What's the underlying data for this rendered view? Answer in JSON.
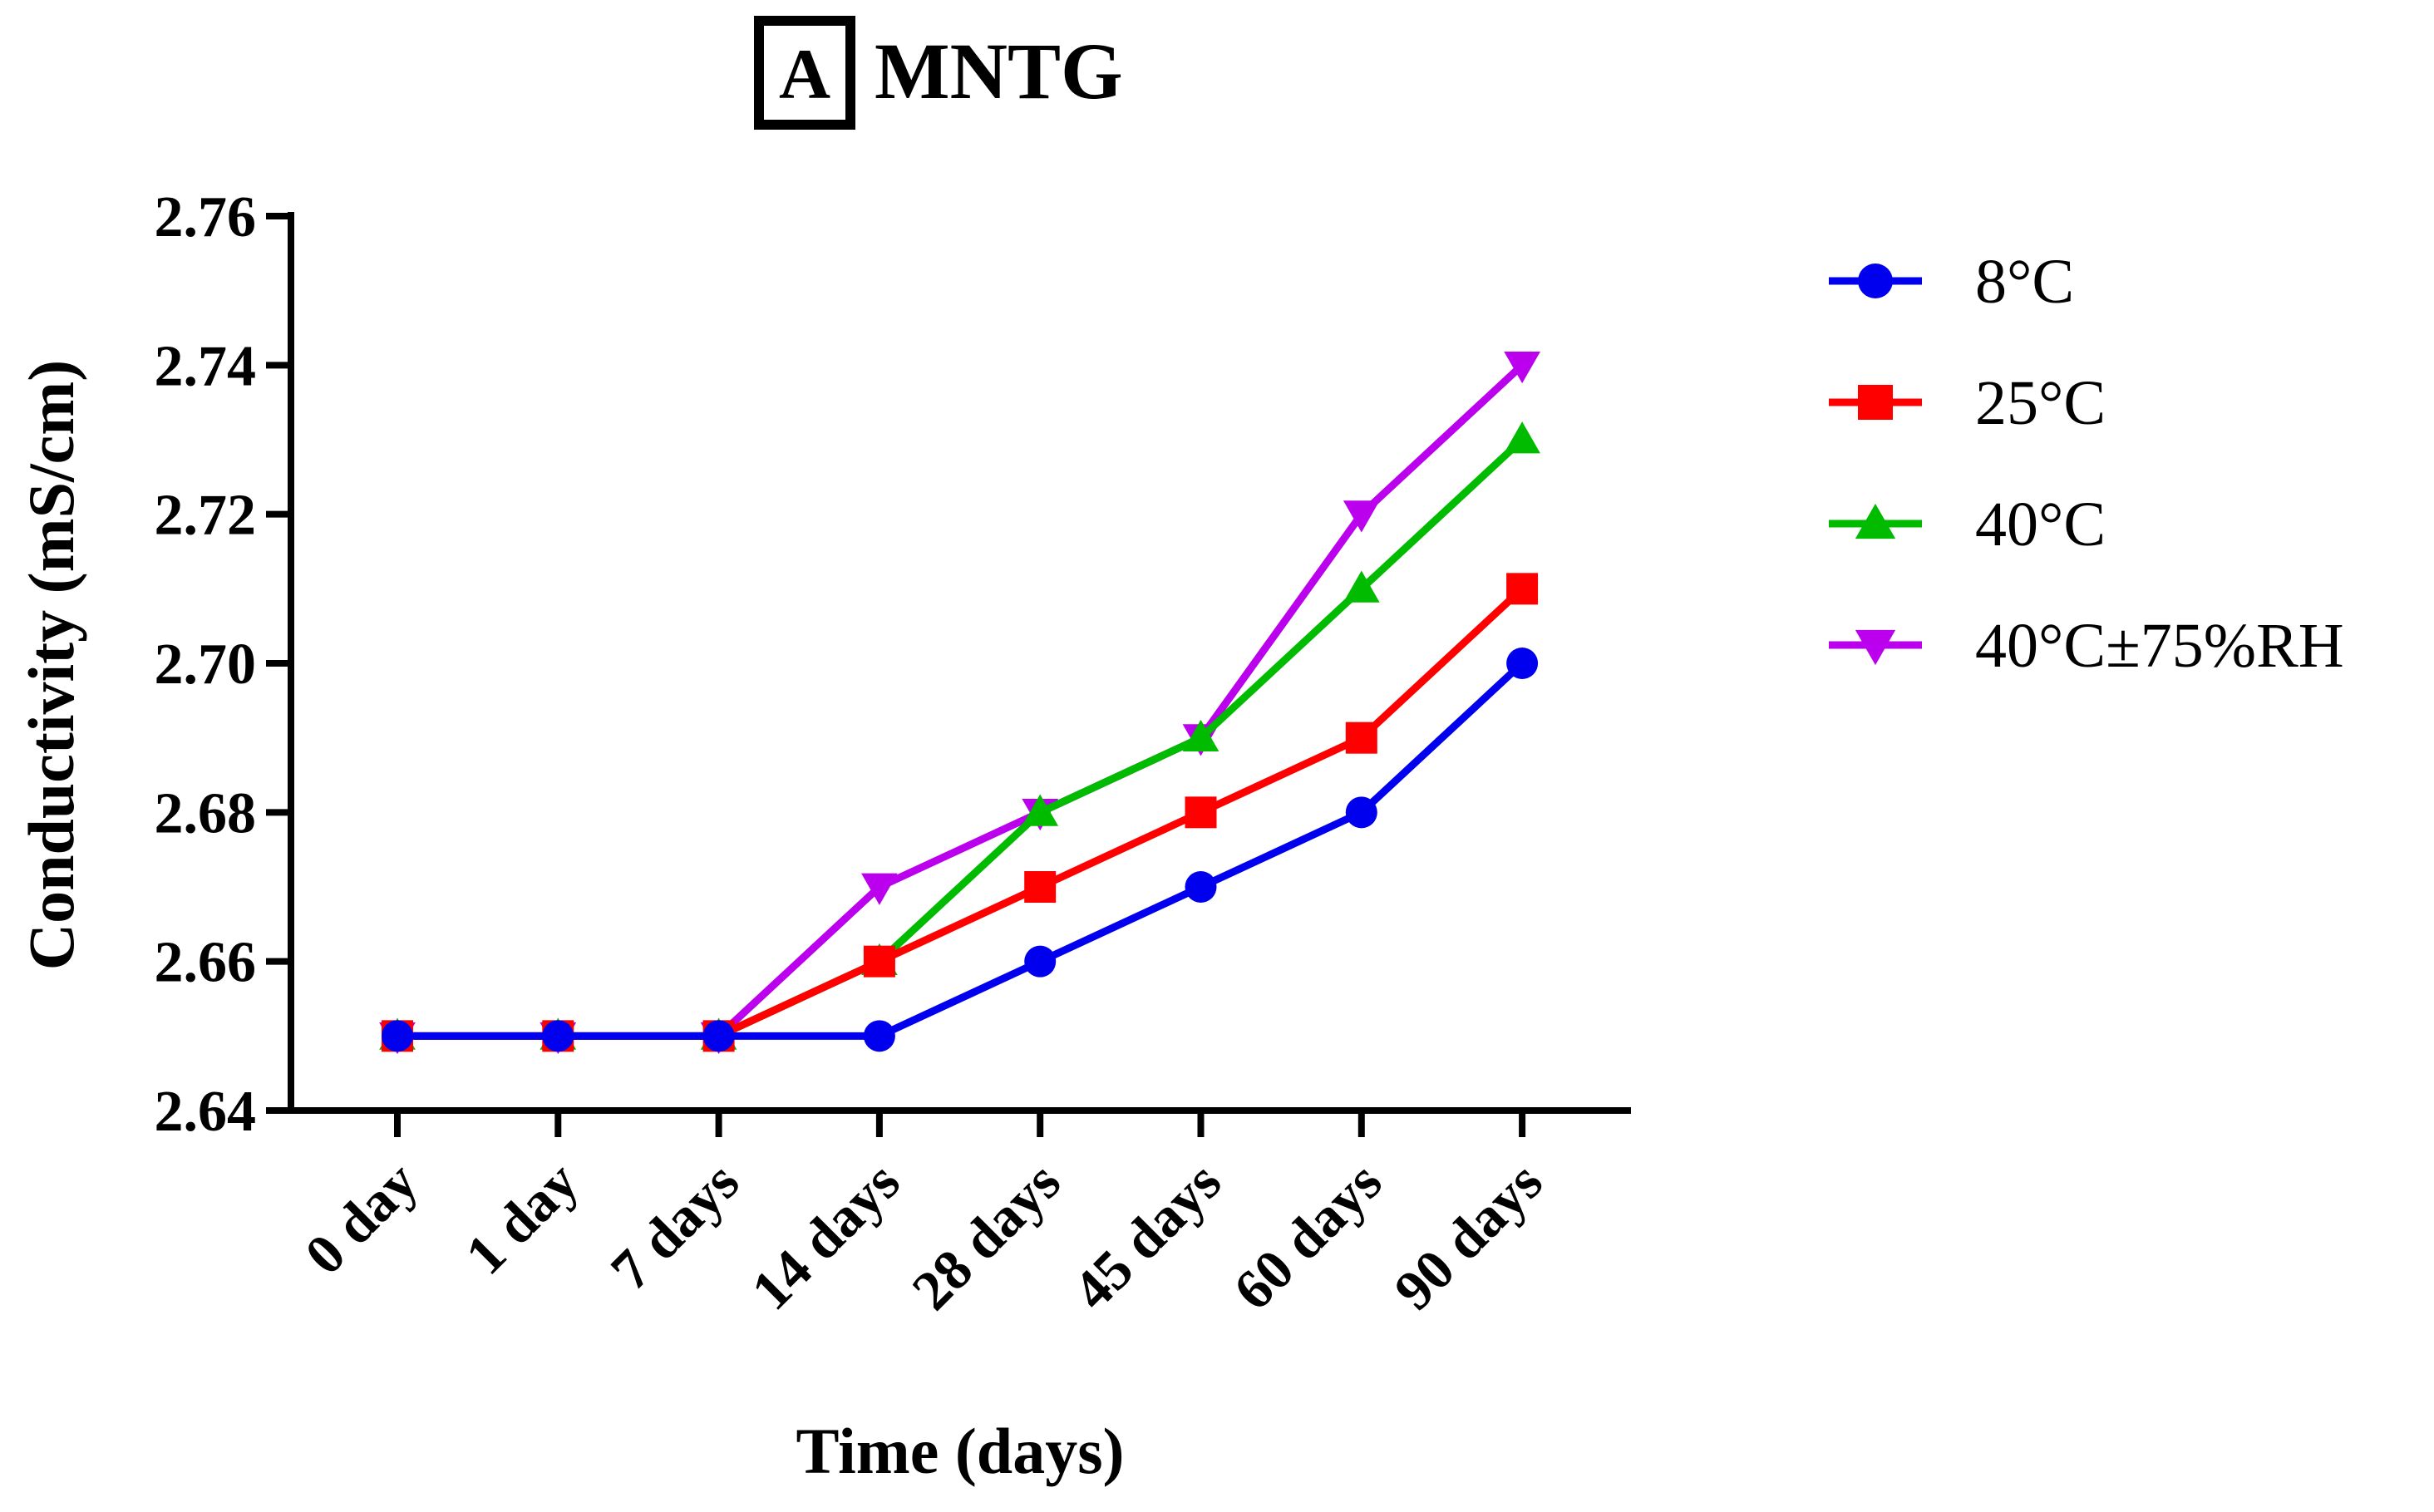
{
  "panel_label": "A",
  "chart_data": {
    "type": "line",
    "title": "MNTG",
    "xlabel": "Time (days)",
    "ylabel": "Conductivity (mS/cm)",
    "categories": [
      "0 day",
      "1 day",
      "7 days",
      "14 days",
      "28 days",
      "45 days",
      "60 days",
      "90 days"
    ],
    "ylim": [
      2.64,
      2.76
    ],
    "yticks": [
      "2.64",
      "2.66",
      "2.68",
      "2.70",
      "2.72",
      "2.74",
      "2.76"
    ],
    "legend_position": "right",
    "grid": false,
    "series": [
      {
        "name": "8°C",
        "color": "#0000ee",
        "marker": "circle",
        "values": [
          2.65,
          2.65,
          2.65,
          2.65,
          2.66,
          2.67,
          2.68,
          2.7
        ]
      },
      {
        "name": "25°C",
        "color": "#ff0000",
        "marker": "square",
        "values": [
          2.65,
          2.65,
          2.65,
          2.66,
          2.67,
          2.68,
          2.69,
          2.71
        ]
      },
      {
        "name": "40°C",
        "color": "#00bb00",
        "marker": "triangle-up",
        "values": [
          2.65,
          2.65,
          2.65,
          2.66,
          2.68,
          2.69,
          2.71,
          2.73
        ]
      },
      {
        "name": "40°C±75%RH",
        "color": "#bb00ee",
        "marker": "triangle-down",
        "values": [
          2.65,
          2.65,
          2.65,
          2.67,
          2.68,
          2.69,
          2.72,
          2.74
        ]
      }
    ]
  }
}
